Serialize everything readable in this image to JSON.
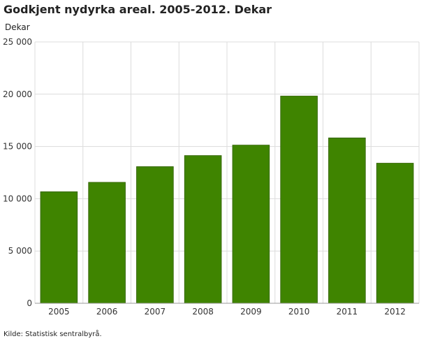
{
  "chart_data": {
    "type": "bar",
    "title": "Godkjent nydyrka areal. 2005-2012. Dekar",
    "ylabel": "Dekar",
    "xlabel": "",
    "categories": [
      "2005",
      "2006",
      "2007",
      "2008",
      "2009",
      "2010",
      "2011",
      "2012"
    ],
    "values": [
      10670,
      11570,
      13070,
      14130,
      15130,
      19820,
      15820,
      13400
    ],
    "ylim": [
      0,
      25000
    ],
    "yticks": [
      0,
      5000,
      10000,
      15000,
      20000,
      25000
    ],
    "ytick_labels": [
      "0",
      "5 000",
      "10 000",
      "15 000",
      "20 000",
      "25 000"
    ],
    "grid": true,
    "bar_color": "#3f8400",
    "source": "Kilde: Statistisk sentralbyrå."
  }
}
